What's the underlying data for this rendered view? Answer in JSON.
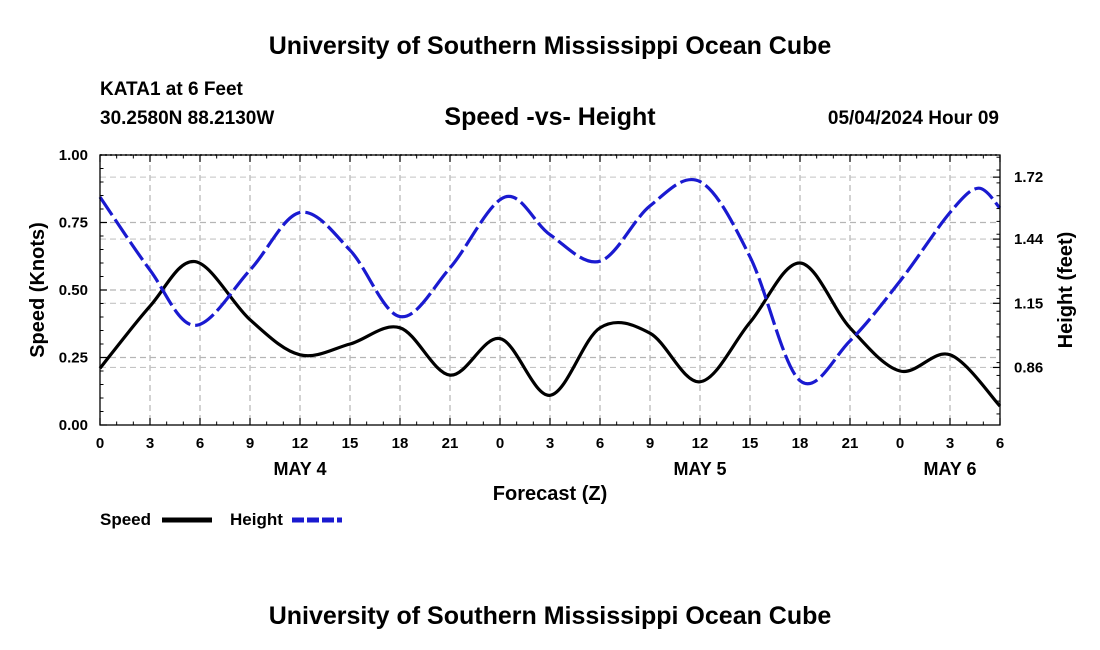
{
  "header": {
    "title": "University of Southern Mississippi Ocean Cube",
    "station": "KATA1 at 6 Feet",
    "coords": "30.2580N  88.2130W",
    "datetime": "05/04/2024 Hour 09",
    "footer_title": "University of Southern Mississippi Ocean Cube"
  },
  "chart_data": {
    "type": "line",
    "title": "Speed -vs- Height",
    "xlabel": "Forecast (Z)",
    "ylabel": "Speed (Knots)",
    "y2label": "Height (feet)",
    "grid": true,
    "xlim": [
      0,
      54
    ],
    "ylim": [
      0,
      1.0
    ],
    "y2lim": [
      0.6,
      1.82
    ],
    "x_ticks": [
      0,
      3,
      6,
      9,
      12,
      15,
      18,
      21,
      24,
      27,
      30,
      33,
      36,
      39,
      42,
      45,
      48,
      51,
      54
    ],
    "x_tick_labels": [
      "0",
      "3",
      "6",
      "9",
      "12",
      "15",
      "18",
      "21",
      "0",
      "3",
      "6",
      "9",
      "12",
      "15",
      "18",
      "21",
      "0",
      "3",
      "6"
    ],
    "date_labels": [
      {
        "x": 12,
        "label": "MAY 4"
      },
      {
        "x": 36,
        "label": "MAY 5"
      },
      {
        "x": 51,
        "label": "MAY 6"
      }
    ],
    "y_ticks": [
      0,
      0.25,
      0.5,
      0.75,
      1.0
    ],
    "y_tick_labels": [
      "0.00",
      "0.25",
      "0.50",
      "0.75",
      "1.00"
    ],
    "y2_ticks": [
      0.86,
      1.15,
      1.44,
      1.72
    ],
    "y2_tick_labels": [
      "0.86",
      "1.15",
      "1.44",
      "1.72"
    ],
    "series": [
      {
        "name": "Speed",
        "axis": "left",
        "color": "#000000",
        "dash": "solid",
        "x": [
          0,
          3,
          5.7,
          9,
          12,
          15,
          18,
          21,
          24,
          27,
          30,
          33,
          36,
          39,
          42,
          45,
          48,
          51,
          54
        ],
        "values": [
          0.21,
          0.44,
          0.605,
          0.39,
          0.26,
          0.3,
          0.36,
          0.185,
          0.32,
          0.11,
          0.36,
          0.34,
          0.16,
          0.38,
          0.6,
          0.36,
          0.2,
          0.26,
          0.07
        ]
      },
      {
        "name": "Height",
        "axis": "right",
        "color": "#1a1ad0",
        "dash": "dashed",
        "x": [
          0,
          3,
          5.7,
          9,
          12,
          15,
          18,
          21,
          24.3,
          27,
          30,
          33,
          36,
          39,
          42,
          45,
          48,
          51,
          52.7,
          54
        ],
        "values": [
          1.63,
          1.3,
          1.05,
          1.3,
          1.56,
          1.39,
          1.09,
          1.31,
          1.63,
          1.46,
          1.34,
          1.59,
          1.7,
          1.36,
          0.8,
          0.98,
          1.25,
          1.56,
          1.67,
          1.58
        ]
      }
    ],
    "legend": [
      "Speed",
      "Height"
    ],
    "legend_position": "bottom-left"
  }
}
